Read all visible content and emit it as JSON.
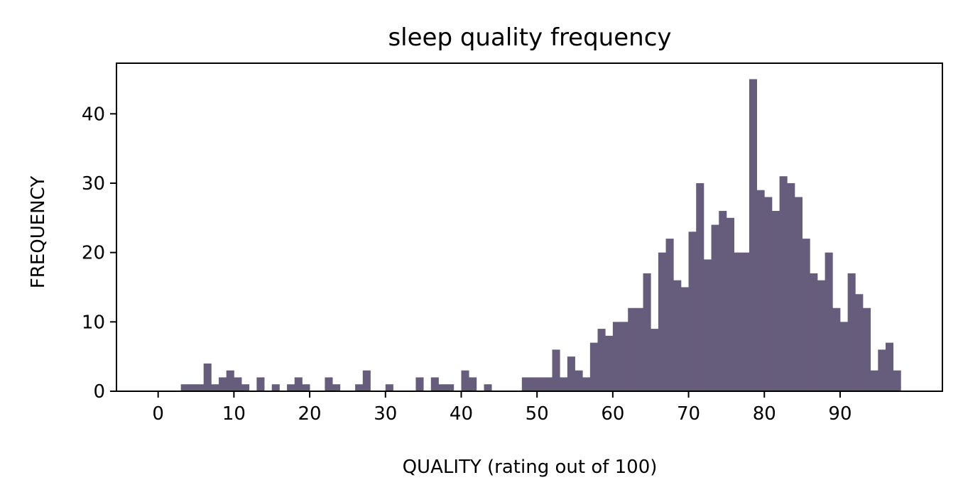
{
  "chart_data": {
    "type": "bar",
    "title": "sleep quality frequency",
    "xlabel": "QUALITY (rating out of 100)",
    "ylabel": "FREQUENCY",
    "xlim": [
      -5.5,
      103.5
    ],
    "ylim": [
      0,
      47.3
    ],
    "xticks": [
      0,
      10,
      20,
      30,
      40,
      50,
      60,
      70,
      80,
      90
    ],
    "yticks": [
      0,
      10,
      20,
      30,
      40
    ],
    "grid": false,
    "bar_color": "#665c7b",
    "bin_width": 1,
    "x": [
      3.5,
      4.5,
      5.5,
      6.5,
      7.5,
      8.5,
      9.5,
      10.5,
      11.5,
      13.5,
      15.5,
      17.5,
      18.5,
      19.5,
      22.5,
      23.5,
      26.5,
      27.5,
      30.5,
      34.5,
      36.5,
      37.5,
      38.5,
      40.5,
      41.5,
      43.5,
      48.5,
      49.5,
      50.5,
      51.5,
      52.5,
      53.5,
      54.5,
      55.5,
      56.5,
      57.5,
      58.5,
      59.5,
      60.5,
      61.5,
      62.5,
      63.5,
      64.5,
      65.5,
      66.5,
      67.5,
      68.5,
      69.5,
      70.5,
      71.5,
      72.5,
      73.5,
      74.5,
      75.5,
      76.5,
      77.5,
      78.5,
      79.5,
      80.5,
      81.5,
      82.5,
      83.5,
      84.5,
      85.5,
      86.5,
      87.5,
      88.5,
      89.5,
      90.5,
      91.5,
      92.5,
      93.5,
      94.5,
      95.5,
      96.5,
      97.5
    ],
    "values": [
      1,
      1,
      1,
      4,
      1,
      2,
      3,
      2,
      1,
      2,
      1,
      1,
      2,
      1,
      2,
      1,
      1,
      3,
      1,
      2,
      2,
      1,
      1,
      3,
      2,
      1,
      2,
      2,
      2,
      2,
      6,
      2,
      5,
      3,
      2,
      7,
      9,
      8,
      10,
      10,
      12,
      12,
      17,
      9,
      20,
      22,
      16,
      15,
      23,
      30,
      19,
      24,
      26,
      25,
      20,
      20,
      45,
      29,
      28,
      26,
      31,
      30,
      28,
      22,
      17,
      16,
      20,
      12,
      10,
      17,
      14,
      12,
      3,
      6,
      7,
      3
    ]
  }
}
